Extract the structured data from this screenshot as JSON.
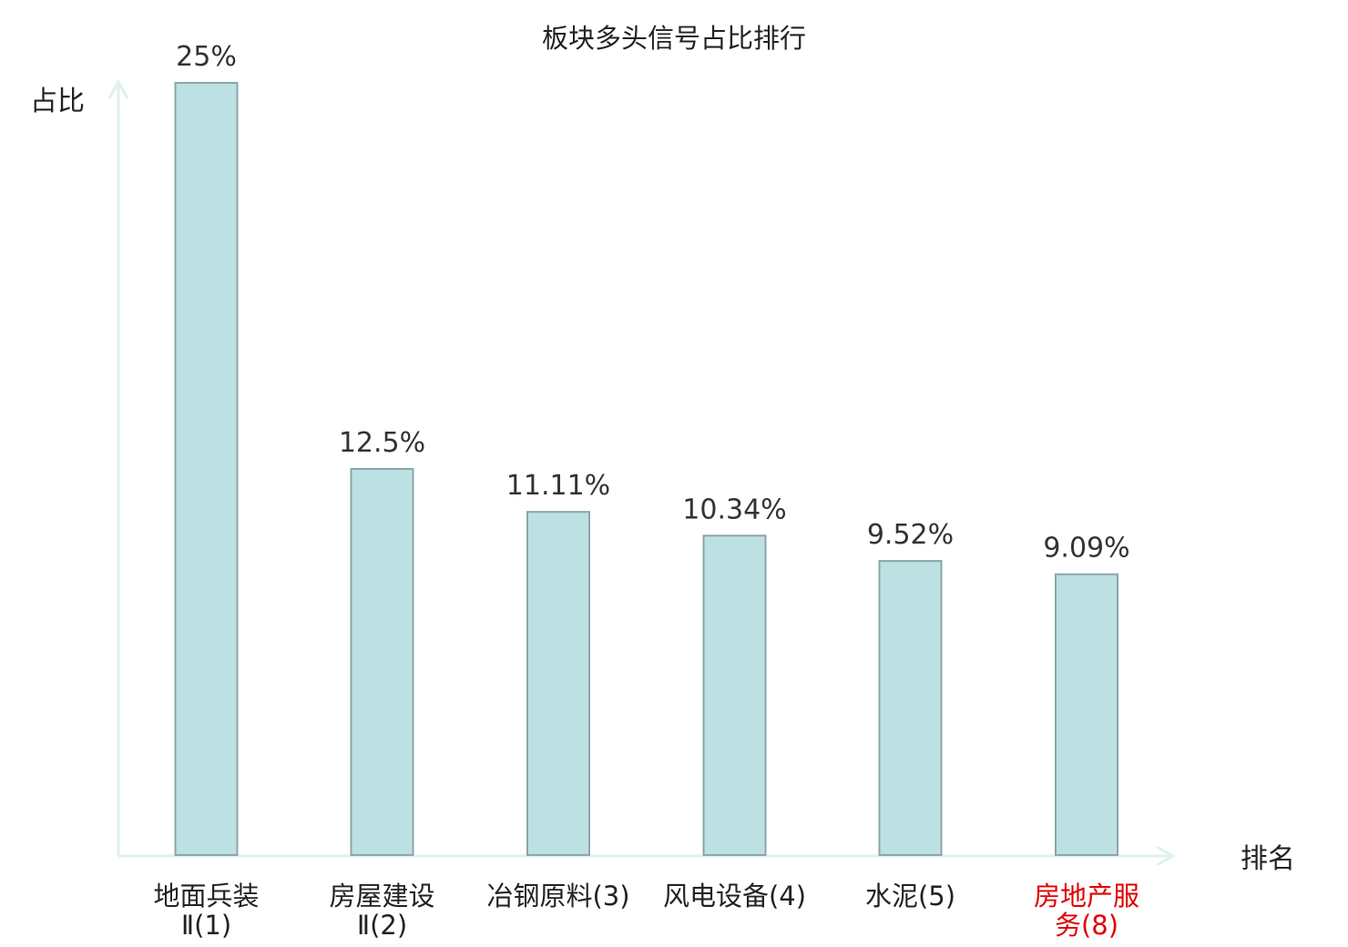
{
  "chart_data": {
    "type": "bar",
    "title": "板块多头信号占比排行",
    "xlabel": "排名",
    "ylabel": "占比",
    "ylim": [
      0,
      25
    ],
    "grid": false,
    "legend": "none",
    "categories": [
      {
        "lines": [
          "地面兵装",
          "Ⅱ(1)"
        ],
        "highlight": false
      },
      {
        "lines": [
          "房屋建设",
          "Ⅱ(2)"
        ],
        "highlight": false
      },
      {
        "lines": [
          "冶钢原料(3)"
        ],
        "highlight": false
      },
      {
        "lines": [
          "风电设备(4)"
        ],
        "highlight": false
      },
      {
        "lines": [
          "水泥(5)"
        ],
        "highlight": false
      },
      {
        "lines": [
          "房地产服",
          "务(8)"
        ],
        "highlight": true
      }
    ],
    "values": [
      25,
      12.5,
      11.11,
      10.34,
      9.52,
      9.09
    ],
    "value_labels": [
      "25%",
      "12.5%",
      "11.11%",
      "10.34%",
      "9.52%",
      "9.09%"
    ],
    "colors": {
      "bar_fill": "#bde0e3",
      "bar_stroke": "#8aa6a9",
      "axis": "#dff1ee",
      "highlight_text": "#e00000"
    }
  }
}
